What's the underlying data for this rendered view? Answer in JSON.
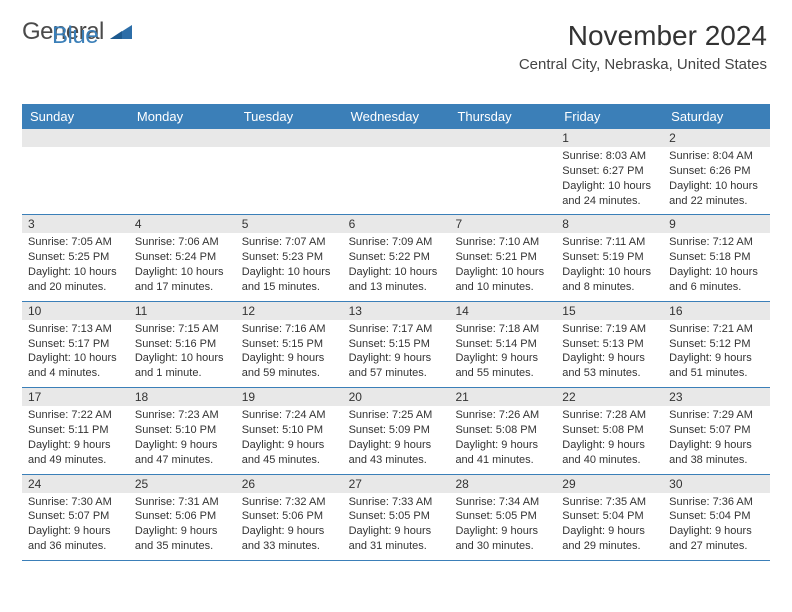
{
  "logo": {
    "general": "General",
    "blue": "Blue",
    "shape_color": "#2d6ea8"
  },
  "header": {
    "title": "November 2024",
    "location": "Central City, Nebraska, United States"
  },
  "colors": {
    "header_bg": "#3b7fb8",
    "band_bg": "#e8e8e8",
    "border": "#3b7fb8"
  },
  "day_names": [
    "Sunday",
    "Monday",
    "Tuesday",
    "Wednesday",
    "Thursday",
    "Friday",
    "Saturday"
  ],
  "weeks": [
    [
      null,
      null,
      null,
      null,
      null,
      {
        "n": "1",
        "sr": "8:03 AM",
        "ss": "6:27 PM",
        "d": "10 hours and 24 minutes."
      },
      {
        "n": "2",
        "sr": "8:04 AM",
        "ss": "6:26 PM",
        "d": "10 hours and 22 minutes."
      }
    ],
    [
      {
        "n": "3",
        "sr": "7:05 AM",
        "ss": "5:25 PM",
        "d": "10 hours and 20 minutes."
      },
      {
        "n": "4",
        "sr": "7:06 AM",
        "ss": "5:24 PM",
        "d": "10 hours and 17 minutes."
      },
      {
        "n": "5",
        "sr": "7:07 AM",
        "ss": "5:23 PM",
        "d": "10 hours and 15 minutes."
      },
      {
        "n": "6",
        "sr": "7:09 AM",
        "ss": "5:22 PM",
        "d": "10 hours and 13 minutes."
      },
      {
        "n": "7",
        "sr": "7:10 AM",
        "ss": "5:21 PM",
        "d": "10 hours and 10 minutes."
      },
      {
        "n": "8",
        "sr": "7:11 AM",
        "ss": "5:19 PM",
        "d": "10 hours and 8 minutes."
      },
      {
        "n": "9",
        "sr": "7:12 AM",
        "ss": "5:18 PM",
        "d": "10 hours and 6 minutes."
      }
    ],
    [
      {
        "n": "10",
        "sr": "7:13 AM",
        "ss": "5:17 PM",
        "d": "10 hours and 4 minutes."
      },
      {
        "n": "11",
        "sr": "7:15 AM",
        "ss": "5:16 PM",
        "d": "10 hours and 1 minute."
      },
      {
        "n": "12",
        "sr": "7:16 AM",
        "ss": "5:15 PM",
        "d": "9 hours and 59 minutes."
      },
      {
        "n": "13",
        "sr": "7:17 AM",
        "ss": "5:15 PM",
        "d": "9 hours and 57 minutes."
      },
      {
        "n": "14",
        "sr": "7:18 AM",
        "ss": "5:14 PM",
        "d": "9 hours and 55 minutes."
      },
      {
        "n": "15",
        "sr": "7:19 AM",
        "ss": "5:13 PM",
        "d": "9 hours and 53 minutes."
      },
      {
        "n": "16",
        "sr": "7:21 AM",
        "ss": "5:12 PM",
        "d": "9 hours and 51 minutes."
      }
    ],
    [
      {
        "n": "17",
        "sr": "7:22 AM",
        "ss": "5:11 PM",
        "d": "9 hours and 49 minutes."
      },
      {
        "n": "18",
        "sr": "7:23 AM",
        "ss": "5:10 PM",
        "d": "9 hours and 47 minutes."
      },
      {
        "n": "19",
        "sr": "7:24 AM",
        "ss": "5:10 PM",
        "d": "9 hours and 45 minutes."
      },
      {
        "n": "20",
        "sr": "7:25 AM",
        "ss": "5:09 PM",
        "d": "9 hours and 43 minutes."
      },
      {
        "n": "21",
        "sr": "7:26 AM",
        "ss": "5:08 PM",
        "d": "9 hours and 41 minutes."
      },
      {
        "n": "22",
        "sr": "7:28 AM",
        "ss": "5:08 PM",
        "d": "9 hours and 40 minutes."
      },
      {
        "n": "23",
        "sr": "7:29 AM",
        "ss": "5:07 PM",
        "d": "9 hours and 38 minutes."
      }
    ],
    [
      {
        "n": "24",
        "sr": "7:30 AM",
        "ss": "5:07 PM",
        "d": "9 hours and 36 minutes."
      },
      {
        "n": "25",
        "sr": "7:31 AM",
        "ss": "5:06 PM",
        "d": "9 hours and 35 minutes."
      },
      {
        "n": "26",
        "sr": "7:32 AM",
        "ss": "5:06 PM",
        "d": "9 hours and 33 minutes."
      },
      {
        "n": "27",
        "sr": "7:33 AM",
        "ss": "5:05 PM",
        "d": "9 hours and 31 minutes."
      },
      {
        "n": "28",
        "sr": "7:34 AM",
        "ss": "5:05 PM",
        "d": "9 hours and 30 minutes."
      },
      {
        "n": "29",
        "sr": "7:35 AM",
        "ss": "5:04 PM",
        "d": "9 hours and 29 minutes."
      },
      {
        "n": "30",
        "sr": "7:36 AM",
        "ss": "5:04 PM",
        "d": "9 hours and 27 minutes."
      }
    ]
  ],
  "labels": {
    "sunrise": "Sunrise: ",
    "sunset": "Sunset: ",
    "daylight": "Daylight: "
  }
}
